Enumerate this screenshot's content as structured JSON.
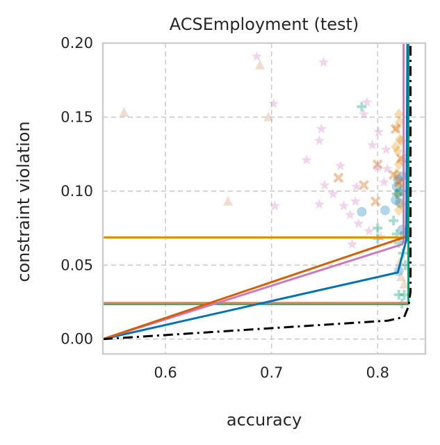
{
  "chart_data": {
    "type": "scatter",
    "title": "ACSEmployment (test)",
    "xlabel": "accuracy",
    "ylabel": "constraint violation",
    "xlim": [
      0.541,
      0.845
    ],
    "ylim": [
      -0.01,
      0.2
    ],
    "xticks": [
      0.6,
      0.7,
      0.8
    ],
    "xtick_labels": [
      "0.6",
      "0.7",
      "0.8"
    ],
    "yticks": [
      0.0,
      0.05,
      0.1,
      0.15,
      0.2
    ],
    "ytick_labels": [
      "0.00",
      "0.05",
      "0.10",
      "0.15",
      "0.20"
    ],
    "grid": true,
    "grid_style": "dashed",
    "colors": {
      "blue": "#0173b2",
      "orange": "#de8f05",
      "green": "#029e73",
      "vermilion": "#d55e00",
      "pink": "#cc78bc",
      "tan": "#ca9161",
      "frontier": "#000000",
      "grid": "#cccccc",
      "spine": "#cccccc"
    },
    "lines": [
      {
        "color": "orange",
        "style": "solid",
        "points": [
          [
            0.541,
            0.0687
          ],
          [
            0.8285,
            0.0687
          ],
          [
            0.8285,
            0.2
          ]
        ]
      },
      {
        "color": "green",
        "style": "solid",
        "points": [
          [
            0.541,
            0.0238
          ],
          [
            0.829,
            0.0238
          ],
          [
            0.829,
            0.2
          ]
        ]
      },
      {
        "color": "tan",
        "style": "solid",
        "points": [
          [
            0.541,
            0.0245
          ],
          [
            0.83,
            0.0245
          ]
        ]
      },
      {
        "color": "blue",
        "style": "solid",
        "points": [
          [
            0.541,
            0.0
          ],
          [
            0.819,
            0.045
          ],
          [
            0.827,
            0.067
          ],
          [
            0.828,
            0.2
          ]
        ]
      },
      {
        "color": "pink",
        "style": "solid",
        "points": [
          [
            0.541,
            0.0
          ],
          [
            0.823,
            0.064
          ],
          [
            0.8245,
            0.066
          ],
          [
            0.8245,
            0.2
          ]
        ]
      },
      {
        "color": "vermilion",
        "style": "solid",
        "points": [
          [
            0.541,
            0.0
          ],
          [
            0.826,
            0.069
          ]
        ]
      },
      {
        "color": "frontier",
        "style": "dashdot",
        "points": [
          [
            0.541,
            0.0
          ],
          [
            0.81,
            0.0125
          ],
          [
            0.825,
            0.015
          ],
          [
            0.829,
            0.022
          ],
          [
            0.831,
            0.032
          ],
          [
            0.831,
            0.2
          ]
        ]
      }
    ],
    "scatter": [
      {
        "color": "blue",
        "marker": "circle",
        "points": [
          [
            0.785,
            0.086
          ],
          [
            0.807,
            0.087
          ],
          [
            0.817,
            0.094
          ],
          [
            0.818,
            0.103
          ],
          [
            0.819,
            0.108
          ],
          [
            0.82,
            0.099
          ],
          [
            0.821,
            0.092
          ],
          [
            0.823,
            0.11
          ],
          [
            0.823,
            0.074
          ],
          [
            0.82,
            0.046
          ],
          [
            0.825,
            0.068
          ]
        ]
      },
      {
        "color": "orange",
        "marker": "diamond",
        "points": [
          [
            0.82,
            0.152
          ],
          [
            0.818,
            0.143
          ],
          [
            0.821,
            0.135
          ],
          [
            0.819,
            0.127
          ],
          [
            0.82,
            0.118
          ],
          [
            0.818,
            0.112
          ],
          [
            0.821,
            0.105
          ],
          [
            0.819,
            0.098
          ],
          [
            0.822,
            0.091
          ],
          [
            0.82,
            0.087
          ],
          [
            0.821,
            0.147
          ],
          [
            0.823,
            0.121
          ],
          [
            0.822,
            0.134
          ],
          [
            0.817,
            0.13
          ]
        ]
      },
      {
        "color": "green",
        "marker": "plus",
        "points": [
          [
            0.785,
            0.157
          ],
          [
            0.8,
            0.075
          ],
          [
            0.815,
            0.08
          ],
          [
            0.818,
            0.071
          ],
          [
            0.82,
            0.065
          ],
          [
            0.824,
            0.058
          ],
          [
            0.826,
            0.05
          ],
          [
            0.82,
            0.03
          ],
          [
            0.825,
            0.03
          ],
          [
            0.823,
            0.024
          ],
          [
            0.822,
            0.1
          ],
          [
            0.818,
            0.098
          ],
          [
            0.826,
            0.072
          ],
          [
            0.8,
            0.068
          ]
        ]
      },
      {
        "color": "vermilion",
        "marker": "x",
        "points": [
          [
            0.787,
            0.104
          ],
          [
            0.798,
            0.093
          ],
          [
            0.815,
            0.111
          ],
          [
            0.82,
            0.106
          ],
          [
            0.822,
            0.122
          ],
          [
            0.817,
            0.142
          ],
          [
            0.763,
            0.109
          ],
          [
            0.8,
            0.118
          ]
        ]
      },
      {
        "color": "pink",
        "marker": "star",
        "points": [
          [
            0.686,
            0.191
          ],
          [
            0.702,
            0.159
          ],
          [
            0.749,
            0.187
          ],
          [
            0.703,
            0.09
          ],
          [
            0.745,
            0.134
          ],
          [
            0.747,
            0.142
          ],
          [
            0.733,
            0.121
          ],
          [
            0.79,
            0.16
          ],
          [
            0.787,
            0.152
          ],
          [
            0.801,
            0.14
          ],
          [
            0.795,
            0.131
          ],
          [
            0.808,
            0.128
          ],
          [
            0.8,
            0.116
          ],
          [
            0.765,
            0.117
          ],
          [
            0.758,
            0.098
          ],
          [
            0.768,
            0.09
          ],
          [
            0.779,
            0.093
          ],
          [
            0.774,
            0.084
          ],
          [
            0.782,
            0.078
          ],
          [
            0.792,
            0.073
          ],
          [
            0.803,
            0.069
          ],
          [
            0.806,
            0.106
          ],
          [
            0.745,
            0.091
          ],
          [
            0.78,
            0.103
          ],
          [
            0.75,
            0.104
          ],
          [
            0.776,
            0.064
          ],
          [
            0.809,
            0.115
          ]
        ]
      },
      {
        "color": "tan",
        "marker": "triangle",
        "points": [
          [
            0.561,
            0.153
          ],
          [
            0.689,
            0.185
          ],
          [
            0.697,
            0.15
          ],
          [
            0.659,
            0.093
          ],
          [
            0.822,
            0.042
          ],
          [
            0.825,
            0.037
          ],
          [
            0.821,
            0.052
          ]
        ]
      }
    ]
  }
}
